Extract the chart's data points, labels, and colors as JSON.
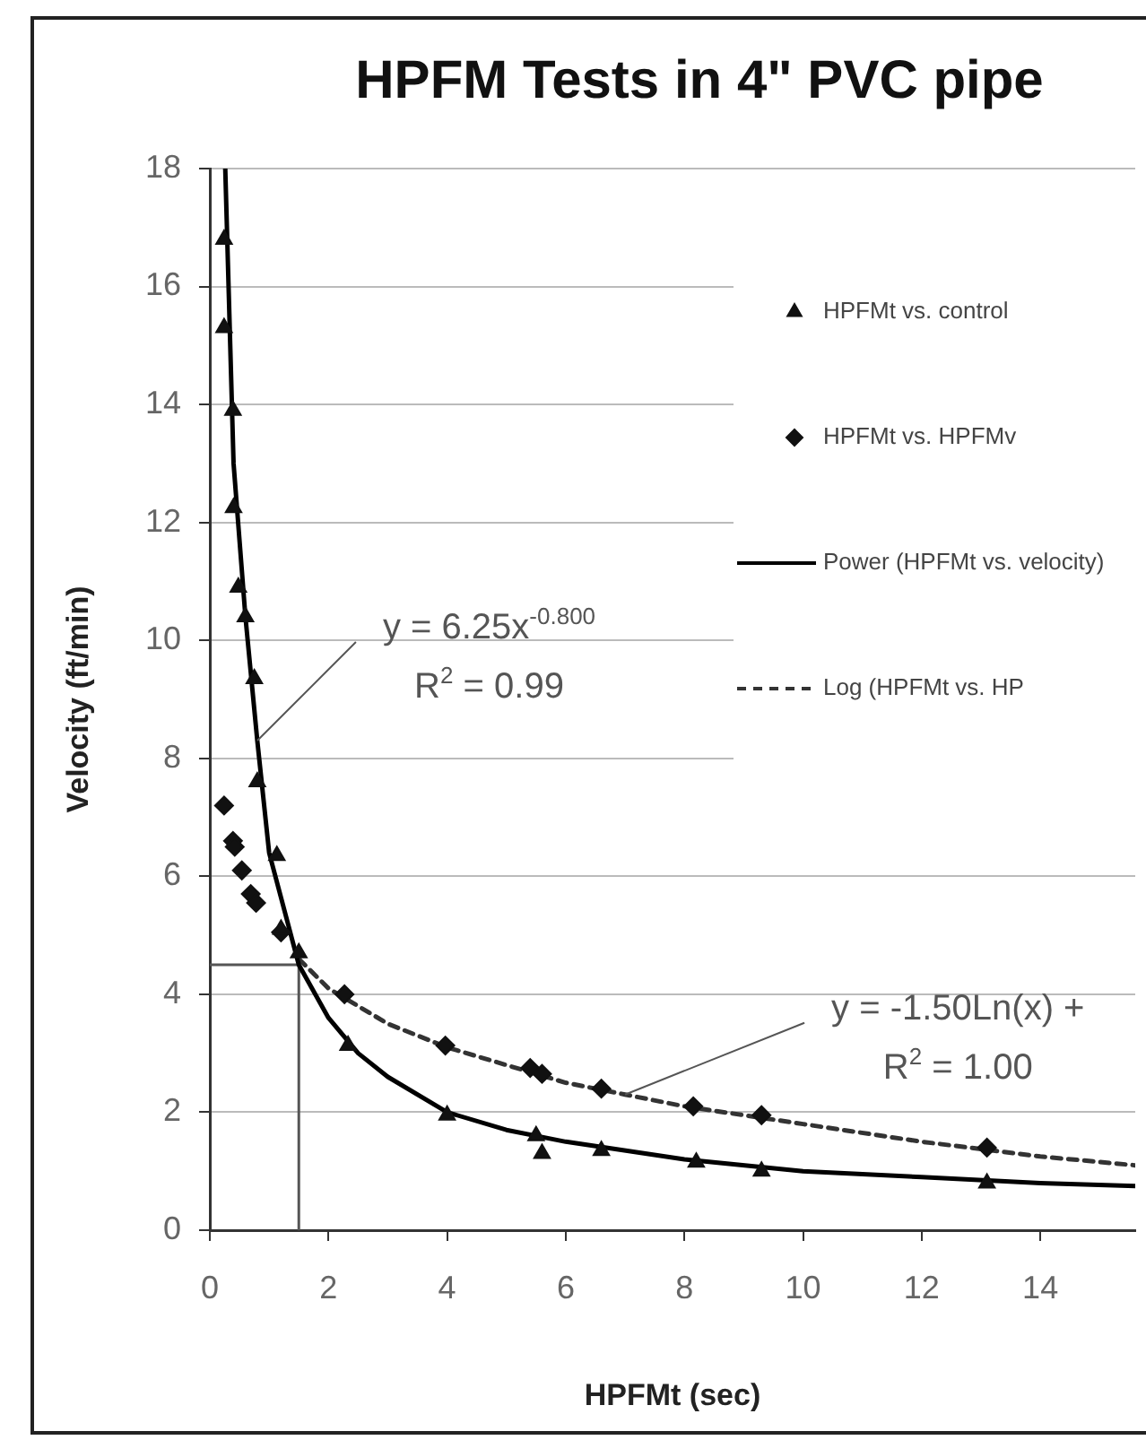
{
  "chart_data": {
    "type": "scatter",
    "title": "HPFM Tests in 4\" PVC pipe",
    "xlabel": "HPFMt (sec)",
    "ylabel": "Velocity (ft/min)",
    "xlim": [
      0,
      15.6
    ],
    "xticks": [
      0,
      2,
      4,
      6,
      8,
      10,
      12,
      14
    ],
    "ylim": [
      0,
      18
    ],
    "yticks": [
      0,
      2,
      4,
      6,
      8,
      10,
      12,
      14,
      16,
      18
    ],
    "grid": "y",
    "legend": "top right",
    "series": [
      {
        "name": "HPFMt vs. control",
        "marker": "triangle",
        "color": "#111111",
        "x": [
          0.24,
          0.24,
          0.39,
          0.4,
          0.48,
          0.6,
          0.75,
          0.8,
          1.13,
          1.2,
          1.5,
          2.33,
          4.0,
          5.5,
          5.6,
          6.6,
          8.2,
          9.3,
          13.1
        ],
        "values": [
          16.8,
          15.3,
          13.9,
          12.25,
          10.9,
          10.4,
          9.35,
          7.6,
          6.35,
          5.1,
          4.7,
          3.13,
          1.95,
          1.6,
          1.3,
          1.35,
          1.15,
          1.0,
          0.8
        ]
      },
      {
        "name": "HPFMt vs. HPFMv",
        "marker": "diamond",
        "color": "#111111",
        "x": [
          0.24,
          0.39,
          0.42,
          0.54,
          0.69,
          0.78,
          1.2,
          2.27,
          3.97,
          5.4,
          5.6,
          6.6,
          8.15,
          9.3,
          13.1
        ],
        "values": [
          7.2,
          6.6,
          6.5,
          6.1,
          5.7,
          5.55,
          5.05,
          4.0,
          3.13,
          2.75,
          2.65,
          2.4,
          2.1,
          1.95,
          1.4
        ]
      },
      {
        "name": "Power (HPFMt vs. velocity)",
        "type": "line",
        "marker": "none",
        "line_style": "solid",
        "color": "#000000",
        "x": [
          0.26,
          0.4,
          0.6,
          0.8,
          1.0,
          1.5,
          2,
          2.5,
          3,
          4,
          5,
          6,
          8,
          10,
          12,
          14,
          15.6
        ],
        "values": [
          18,
          13,
          10.4,
          8.3,
          6.4,
          4.5,
          3.6,
          3.0,
          2.6,
          2.0,
          1.7,
          1.5,
          1.2,
          1.0,
          0.9,
          0.8,
          0.75
        ]
      },
      {
        "name": "Log (HPFMt vs. HP",
        "type": "line",
        "marker": "none",
        "line_style": "dashed",
        "color": "#333333",
        "x": [
          1.5,
          2,
          3,
          4,
          5,
          6,
          7,
          8,
          10,
          12,
          14,
          15.6
        ],
        "values": [
          4.6,
          4.1,
          3.5,
          3.1,
          2.8,
          2.5,
          2.3,
          2.1,
          1.8,
          1.5,
          1.25,
          1.1
        ]
      },
      {
        "type": "line",
        "marker": "none",
        "line_style": "solid",
        "color": "#555555",
        "x": [
          0,
          1.5,
          1.5
        ],
        "values": [
          4.5,
          4.5,
          0
        ]
      }
    ],
    "annotations": [
      {
        "text": "y = 6.25x$^{-0.800}$",
        "x": 0.8,
        "y": 8.3
      },
      "R$^{2}$ = 0.99",
      {
        "text": "y = -1.50Ln(x) +",
        "x": 7,
        "y": 2.3
      },
      "R$^{2}$ = 1.00"
    ]
  }
}
